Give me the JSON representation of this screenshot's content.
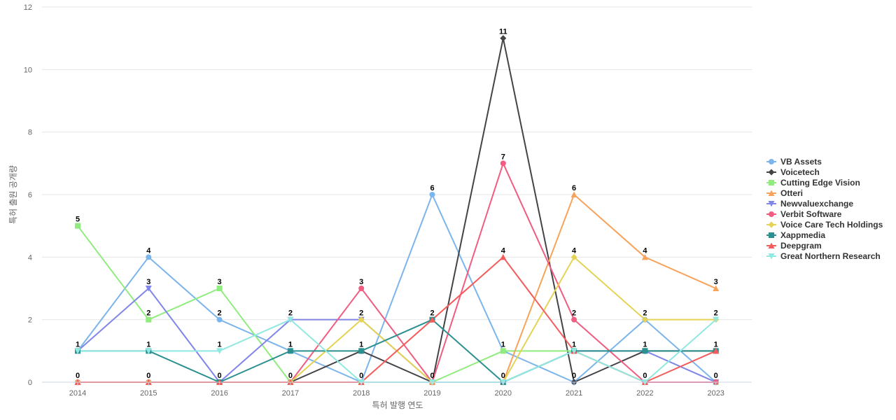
{
  "chart_data": {
    "type": "line",
    "xlabel": "특허 발행 연도",
    "ylabel": "특허 출원 공개량",
    "ylim": [
      0,
      12
    ],
    "yticks": [
      0,
      2,
      4,
      6,
      8,
      10,
      12
    ],
    "categories": [
      "2014",
      "2015",
      "2016",
      "2017",
      "2018",
      "2019",
      "2020",
      "2021",
      "2022",
      "2023"
    ],
    "grid": "horizontal",
    "legend_position": "right",
    "series": [
      {
        "name": "VB Assets",
        "color": "#7cb5ec",
        "marker": "circle",
        "values": [
          1,
          4,
          2,
          1,
          0,
          6,
          1,
          0,
          2,
          0
        ]
      },
      {
        "name": "Voicetech",
        "color": "#434348",
        "marker": "diamond",
        "values": [
          0,
          0,
          0,
          0,
          1,
          0,
          11,
          0,
          1,
          1
        ]
      },
      {
        "name": "Cutting Edge Vision",
        "color": "#90ed7d",
        "marker": "square",
        "values": [
          5,
          2,
          3,
          0,
          0,
          0,
          1,
          1,
          0,
          0
        ]
      },
      {
        "name": "Otteri",
        "color": "#f7a35c",
        "marker": "triangle",
        "values": [
          0,
          0,
          0,
          0,
          0,
          0,
          0,
          6,
          4,
          3
        ]
      },
      {
        "name": "Newvaluexchange",
        "color": "#8085e9",
        "marker": "triangle-down",
        "values": [
          1,
          3,
          0,
          2,
          2,
          0,
          0,
          1,
          1,
          0
        ]
      },
      {
        "name": "Verbit Software",
        "color": "#f15c80",
        "marker": "circle",
        "values": [
          0,
          0,
          0,
          0,
          3,
          0,
          7,
          2,
          0,
          0
        ]
      },
      {
        "name": "Voice Care Tech Holdings",
        "color": "#e4d354",
        "marker": "diamond",
        "values": [
          0,
          0,
          0,
          0,
          2,
          0,
          0,
          4,
          2,
          2
        ]
      },
      {
        "name": "Xappmedia",
        "color": "#2b908f",
        "marker": "square",
        "values": [
          1,
          1,
          0,
          1,
          1,
          2,
          0,
          1,
          1,
          1
        ]
      },
      {
        "name": "Deepgram",
        "color": "#f45b5b",
        "marker": "triangle",
        "values": [
          0,
          0,
          0,
          0,
          0,
          2,
          4,
          1,
          0,
          1
        ]
      },
      {
        "name": "Great Northern Research",
        "color": "#91e8e1",
        "marker": "triangle-down",
        "values": [
          1,
          1,
          1,
          2,
          0,
          0,
          0,
          1,
          0,
          2
        ]
      }
    ],
    "data_labels": [
      {
        "x": "2014",
        "value": 5
      },
      {
        "x": "2014",
        "value": 1
      },
      {
        "x": "2014",
        "value": 0
      },
      {
        "x": "2015",
        "value": 4
      },
      {
        "x": "2015",
        "value": 3
      },
      {
        "x": "2015",
        "value": 2
      },
      {
        "x": "2015",
        "value": 1
      },
      {
        "x": "2015",
        "value": 0
      },
      {
        "x": "2016",
        "value": 3
      },
      {
        "x": "2016",
        "value": 2
      },
      {
        "x": "2016",
        "value": 1
      },
      {
        "x": "2016",
        "value": 0
      },
      {
        "x": "2017",
        "value": 2
      },
      {
        "x": "2017",
        "value": 1
      },
      {
        "x": "2017",
        "value": 0
      },
      {
        "x": "2018",
        "value": 3
      },
      {
        "x": "2018",
        "value": 2
      },
      {
        "x": "2018",
        "value": 1
      },
      {
        "x": "2018",
        "value": 0
      },
      {
        "x": "2019",
        "value": 6
      },
      {
        "x": "2019",
        "value": 2
      },
      {
        "x": "2019",
        "value": 0
      },
      {
        "x": "2020",
        "value": 11
      },
      {
        "x": "2020",
        "value": 7
      },
      {
        "x": "2020",
        "value": 4
      },
      {
        "x": "2020",
        "value": 1
      },
      {
        "x": "2020",
        "value": 0
      },
      {
        "x": "2021",
        "value": 6
      },
      {
        "x": "2021",
        "value": 4
      },
      {
        "x": "2021",
        "value": 2
      },
      {
        "x": "2021",
        "value": 1
      },
      {
        "x": "2021",
        "value": 0
      },
      {
        "x": "2022",
        "value": 4
      },
      {
        "x": "2022",
        "value": 2
      },
      {
        "x": "2022",
        "value": 1
      },
      {
        "x": "2022",
        "value": 0
      },
      {
        "x": "2023",
        "value": 3
      },
      {
        "x": "2023",
        "value": 2
      },
      {
        "x": "2023",
        "value": 1
      },
      {
        "x": "2023",
        "value": 0
      }
    ]
  }
}
